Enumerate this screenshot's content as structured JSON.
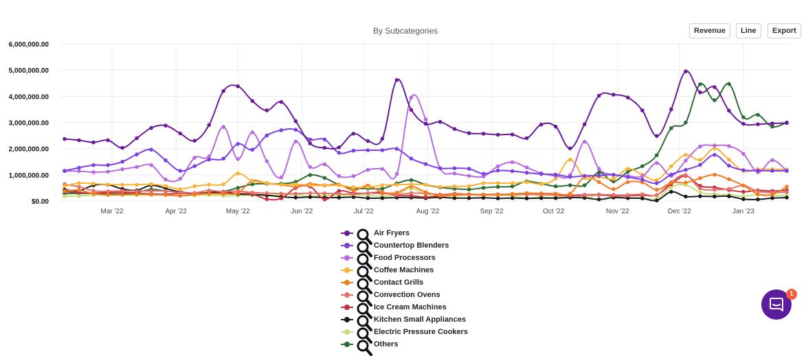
{
  "toolbar": {
    "revenue_label": "Revenue",
    "line_label": "Line",
    "export_label": "Export"
  },
  "chat": {
    "badge_count": "1"
  },
  "chart_data": {
    "type": "line",
    "title": "By Subcategories",
    "xlabel": "",
    "ylabel": "",
    "ylim": [
      0,
      6000000
    ],
    "yticks": [
      "$0.00",
      "1,000,000.00",
      "2,000,000.00",
      "3,000,000.00",
      "4,000,000.00",
      "5,000,000.00",
      "6,000,000.00"
    ],
    "xticks": [
      "Mar '22",
      "Apr '22",
      "May '22",
      "Jun '22",
      "Jul '22",
      "Aug '22",
      "Sep '22",
      "Oct '22",
      "Nov '22",
      "Dec '22",
      "Jan '23"
    ],
    "x": [
      "2022-02-06",
      "2022-02-13",
      "2022-02-20",
      "2022-02-27",
      "2022-03-06",
      "2022-03-13",
      "2022-03-20",
      "2022-03-27",
      "2022-04-03",
      "2022-04-10",
      "2022-04-17",
      "2022-04-24",
      "2022-05-01",
      "2022-05-08",
      "2022-05-15",
      "2022-05-22",
      "2022-05-29",
      "2022-06-05",
      "2022-06-12",
      "2022-06-19",
      "2022-06-26",
      "2022-07-03",
      "2022-07-10",
      "2022-07-17",
      "2022-07-24",
      "2022-07-31",
      "2022-08-07",
      "2022-08-14",
      "2022-08-21",
      "2022-08-28",
      "2022-09-04",
      "2022-09-11",
      "2022-09-18",
      "2022-09-25",
      "2022-10-02",
      "2022-10-09",
      "2022-10-16",
      "2022-10-23",
      "2022-10-30",
      "2022-11-06",
      "2022-11-13",
      "2022-11-20",
      "2022-11-27",
      "2022-12-04",
      "2022-12-11",
      "2022-12-18",
      "2022-12-25",
      "2023-01-01",
      "2023-01-08",
      "2023-01-15",
      "2023-01-22"
    ],
    "grid": true,
    "legend_position": "bottom",
    "series": [
      {
        "name": "Air Fryers",
        "color": "#6a1b9a",
        "values": [
          2370000,
          2320000,
          2240000,
          2320000,
          2030000,
          2400000,
          2790000,
          2880000,
          2580000,
          2300000,
          2900000,
          4200000,
          4380000,
          3820000,
          3460000,
          3780000,
          3050000,
          2200000,
          2030000,
          2050000,
          2570000,
          2290000,
          2380000,
          4620000,
          3480000,
          2950000,
          3020000,
          2750000,
          2590000,
          2570000,
          2530000,
          2540000,
          2400000,
          2920000,
          2840000,
          2010000,
          2930000,
          4020000,
          4060000,
          3950000,
          3460000,
          2480000,
          3500000,
          4950000,
          4150000,
          4350000,
          3450000,
          2950000,
          2930000,
          2960000,
          2980000
        ]
      },
      {
        "name": "Countertop Blenders",
        "color": "#7b3fe4",
        "values": [
          1150000,
          1270000,
          1370000,
          1370000,
          1500000,
          1780000,
          1960000,
          1550000,
          1150000,
          1330000,
          1580000,
          1620000,
          2180000,
          1960000,
          2500000,
          2700000,
          2720000,
          2350000,
          2350000,
          1840000,
          1920000,
          1940000,
          1940000,
          1990000,
          1620000,
          1410000,
          1250000,
          1250000,
          1230000,
          1040000,
          1160000,
          1140000,
          1080000,
          1030000,
          1010000,
          920000,
          960000,
          970000,
          1000000,
          910000,
          810000,
          680000,
          1010000,
          1190000,
          1380000,
          1760000,
          1350000,
          1180000,
          1160000,
          1150000,
          1150000
        ]
      },
      {
        "name": "Food Processors",
        "color": "#b86ae0",
        "values": [
          1140000,
          1140000,
          1100000,
          1120000,
          1210000,
          1300000,
          1370000,
          820000,
          850000,
          1650000,
          1700000,
          2830000,
          1600000,
          2620000,
          1520000,
          900000,
          2270000,
          1300000,
          1400000,
          950000,
          950000,
          1190000,
          1220000,
          1030000,
          3950000,
          3120000,
          1250000,
          1050000,
          960000,
          940000,
          1320000,
          1480000,
          1280000,
          1060000,
          960000,
          990000,
          2260000,
          1230000,
          1000000,
          960000,
          940000,
          1450000,
          960000,
          1540000,
          2080000,
          2120000,
          2100000,
          1800000,
          1100000,
          1560000,
          1150000
        ]
      },
      {
        "name": "Coffee Machines",
        "color": "#f9b233",
        "values": [
          570000,
          680000,
          660000,
          630000,
          620000,
          620000,
          640000,
          570000,
          450000,
          560000,
          620000,
          640000,
          1050000,
          760000,
          690000,
          630000,
          640000,
          600000,
          590000,
          600000,
          520000,
          530000,
          600000,
          620000,
          640000,
          620000,
          540000,
          560000,
          570000,
          680000,
          680000,
          680000,
          720000,
          650000,
          860000,
          1580000,
          880000,
          920000,
          850000,
          1230000,
          1000000,
          800000,
          1320000,
          1760000,
          1570000,
          2010000,
          1580000,
          1150000,
          1210000,
          1210000,
          1200000
        ]
      },
      {
        "name": "Contact Grills",
        "color": "#f37a1f",
        "values": [
          380000,
          410000,
          280000,
          240000,
          240000,
          260000,
          240000,
          230000,
          200000,
          250000,
          280000,
          270000,
          310000,
          770000,
          670000,
          620000,
          550000,
          650000,
          600000,
          630000,
          400000,
          590000,
          330000,
          320000,
          550000,
          340000,
          200000,
          230000,
          240000,
          240000,
          230000,
          270000,
          300000,
          290000,
          280000,
          280000,
          920000,
          720000,
          450000,
          720000,
          710000,
          430000,
          700000,
          700000,
          870000,
          1000000,
          830000,
          590000,
          260000,
          250000,
          550000
        ]
      },
      {
        "name": "Convection Ovens",
        "color": "#e8706b",
        "values": [
          640000,
          540000,
          390000,
          370000,
          390000,
          380000,
          380000,
          380000,
          320000,
          310000,
          400000,
          350000,
          380000,
          320000,
          300000,
          280000,
          280000,
          300000,
          290000,
          270000,
          260000,
          300000,
          280000,
          250000,
          300000,
          290000,
          250000,
          280000,
          260000,
          250000,
          260000,
          240000,
          250000,
          240000,
          230000,
          230000,
          240000,
          250000,
          230000,
          230000,
          260000,
          230000,
          720000,
          990000,
          480000,
          430000,
          460000,
          590000,
          370000,
          320000,
          340000
        ]
      },
      {
        "name": "Ice Cream Machines",
        "color": "#c4313b",
        "values": [
          360000,
          320000,
          300000,
          320000,
          330000,
          300000,
          270000,
          260000,
          290000,
          280000,
          290000,
          300000,
          290000,
          260000,
          70000,
          100000,
          500000,
          550000,
          60000,
          380000,
          300000,
          300000,
          330000,
          210000,
          200000,
          150000,
          200000,
          280000,
          250000,
          230000,
          250000,
          260000,
          260000,
          240000,
          230000,
          190000,
          220000,
          230000,
          200000,
          200000,
          220000,
          230000,
          640000,
          960000,
          580000,
          520000,
          420000,
          350000,
          400000,
          380000,
          410000
        ]
      },
      {
        "name": "Kitchen Small Appliances",
        "color": "#1a1a1a",
        "values": [
          430000,
          390000,
          600000,
          620000,
          460000,
          410000,
          600000,
          480000,
          340000,
          290000,
          320000,
          360000,
          270000,
          250000,
          220000,
          160000,
          130000,
          150000,
          130000,
          130000,
          150000,
          110000,
          110000,
          130000,
          130000,
          110000,
          140000,
          110000,
          110000,
          120000,
          100000,
          110000,
          100000,
          110000,
          110000,
          130000,
          120000,
          60000,
          130000,
          110000,
          100000,
          20000,
          350000,
          170000,
          180000,
          170000,
          180000,
          70000,
          60000,
          110000,
          130000
        ]
      },
      {
        "name": "Electric Pressure Cookers",
        "color": "#c3e078",
        "values": [
          180000,
          190000,
          230000,
          220000,
          230000,
          220000,
          240000,
          230000,
          200000,
          210000,
          230000,
          190000,
          200000,
          220000,
          200000,
          230000,
          240000,
          180000,
          220000,
          210000,
          230000,
          220000,
          170000,
          250000,
          470000,
          260000,
          210000,
          190000,
          240000,
          230000,
          220000,
          200000,
          110000,
          150000,
          130000,
          260000,
          110000,
          250000,
          150000,
          120000,
          110000,
          90000,
          530000,
          610000,
          330000,
          260000,
          240000,
          180000,
          240000,
          210000,
          220000
        ]
      },
      {
        "name": "Others",
        "color": "#2e6b34",
        "values": [
          280000,
          290000,
          290000,
          270000,
          270000,
          330000,
          440000,
          380000,
          340000,
          300000,
          300000,
          360000,
          500000,
          640000,
          660000,
          660000,
          730000,
          990000,
          880000,
          620000,
          480000,
          480000,
          470000,
          670000,
          800000,
          620000,
          520000,
          470000,
          440000,
          500000,
          540000,
          560000,
          750000,
          660000,
          560000,
          600000,
          600000,
          1090000,
          750000,
          1120000,
          1330000,
          1750000,
          2780000,
          3000000,
          4460000,
          3850000,
          4470000,
          3200000,
          3290000,
          2840000,
          3000000
        ]
      }
    ]
  }
}
